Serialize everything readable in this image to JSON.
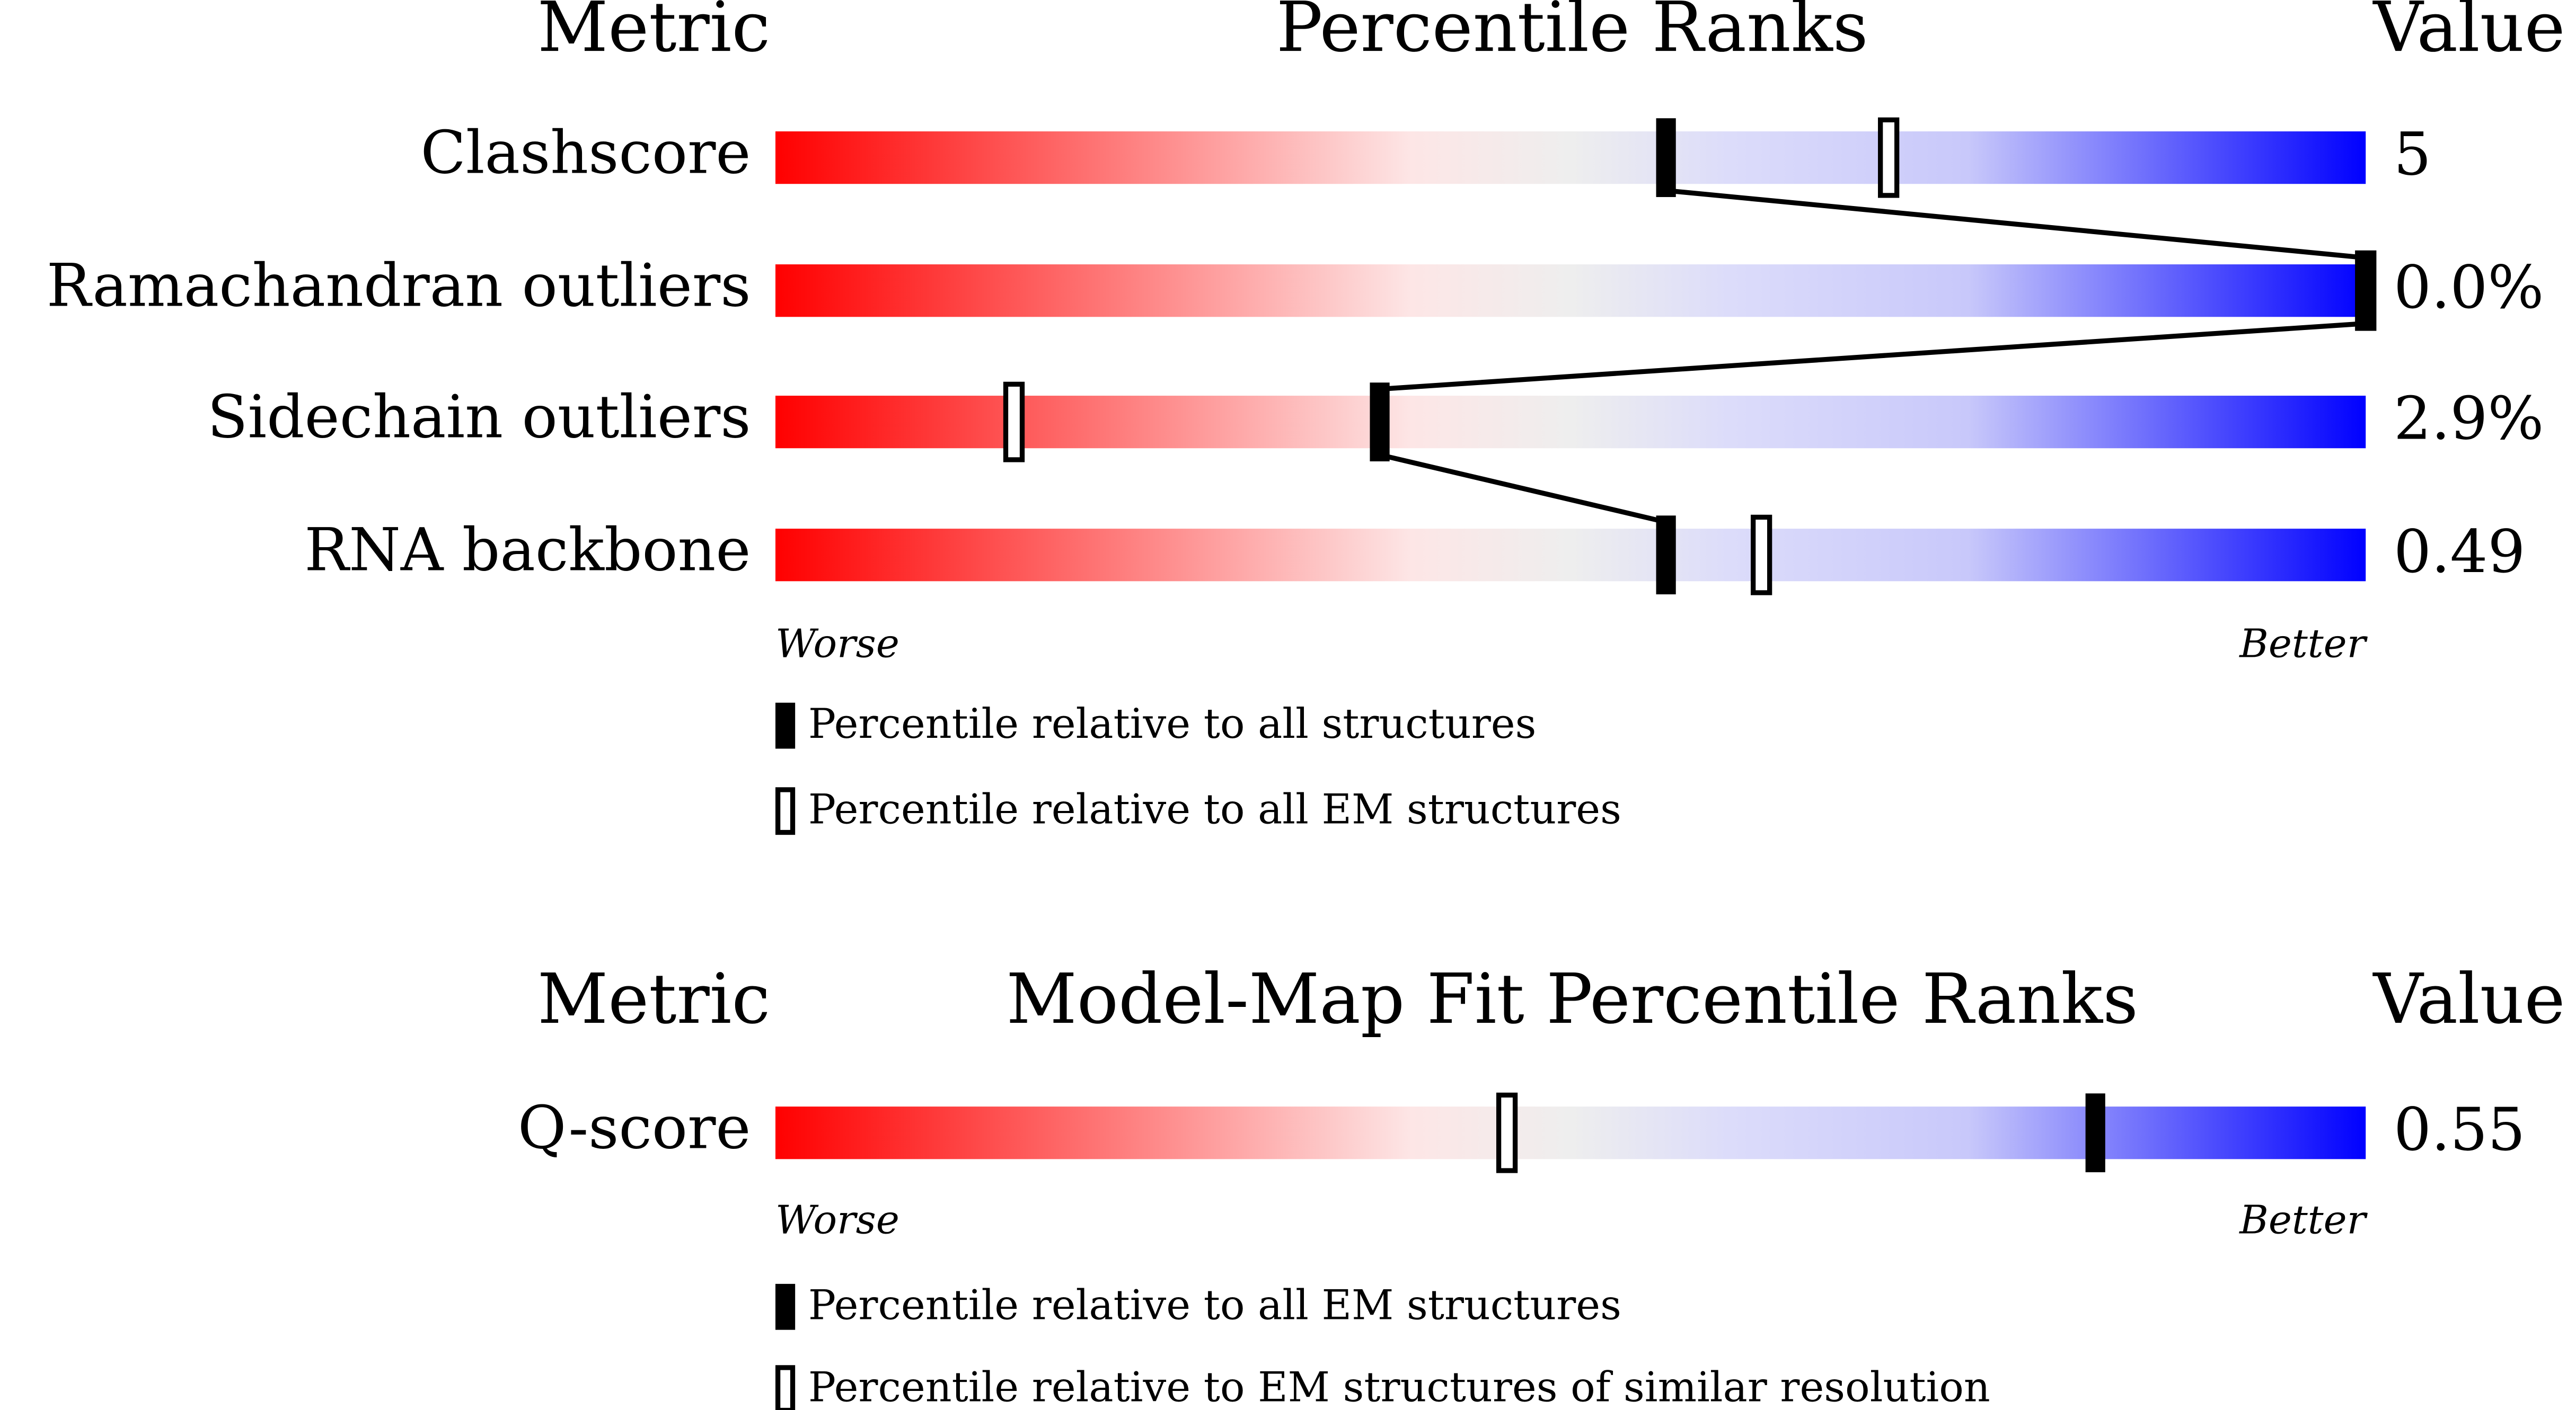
{
  "panels": [
    {
      "header": {
        "metric": "Metric",
        "title": "Percentile Ranks",
        "value": "Value"
      },
      "rows": [
        {
          "metric": "Clashscore",
          "value": "5",
          "percentile_filled": 56,
          "percentile_open": 70
        },
        {
          "metric": "Ramachandran outliers",
          "value": "0.0%",
          "percentile_filled": 100,
          "percentile_open": 100
        },
        {
          "metric": "Sidechain outliers",
          "value": "2.9%",
          "percentile_filled": 38,
          "percentile_open": 15
        },
        {
          "metric": "RNA backbone",
          "value": "0.49",
          "percentile_filled": 56,
          "percentile_open": 62
        }
      ],
      "scale": {
        "worse": "Worse",
        "better": "Better"
      },
      "legend": {
        "filled": "Percentile relative to all structures",
        "open": "Percentile relative to all EM structures"
      }
    },
    {
      "header": {
        "metric": "Metric",
        "title": "Model-Map Fit Percentile Ranks",
        "value": "Value"
      },
      "rows": [
        {
          "metric": "Q-score",
          "value": "0.55",
          "percentile_filled": 83,
          "percentile_open": 46
        }
      ],
      "scale": {
        "worse": "Worse",
        "better": "Better"
      },
      "legend": {
        "filled": "Percentile relative to all EM structures",
        "open": "Percentile relative to EM structures of similar resolution"
      }
    }
  ]
}
